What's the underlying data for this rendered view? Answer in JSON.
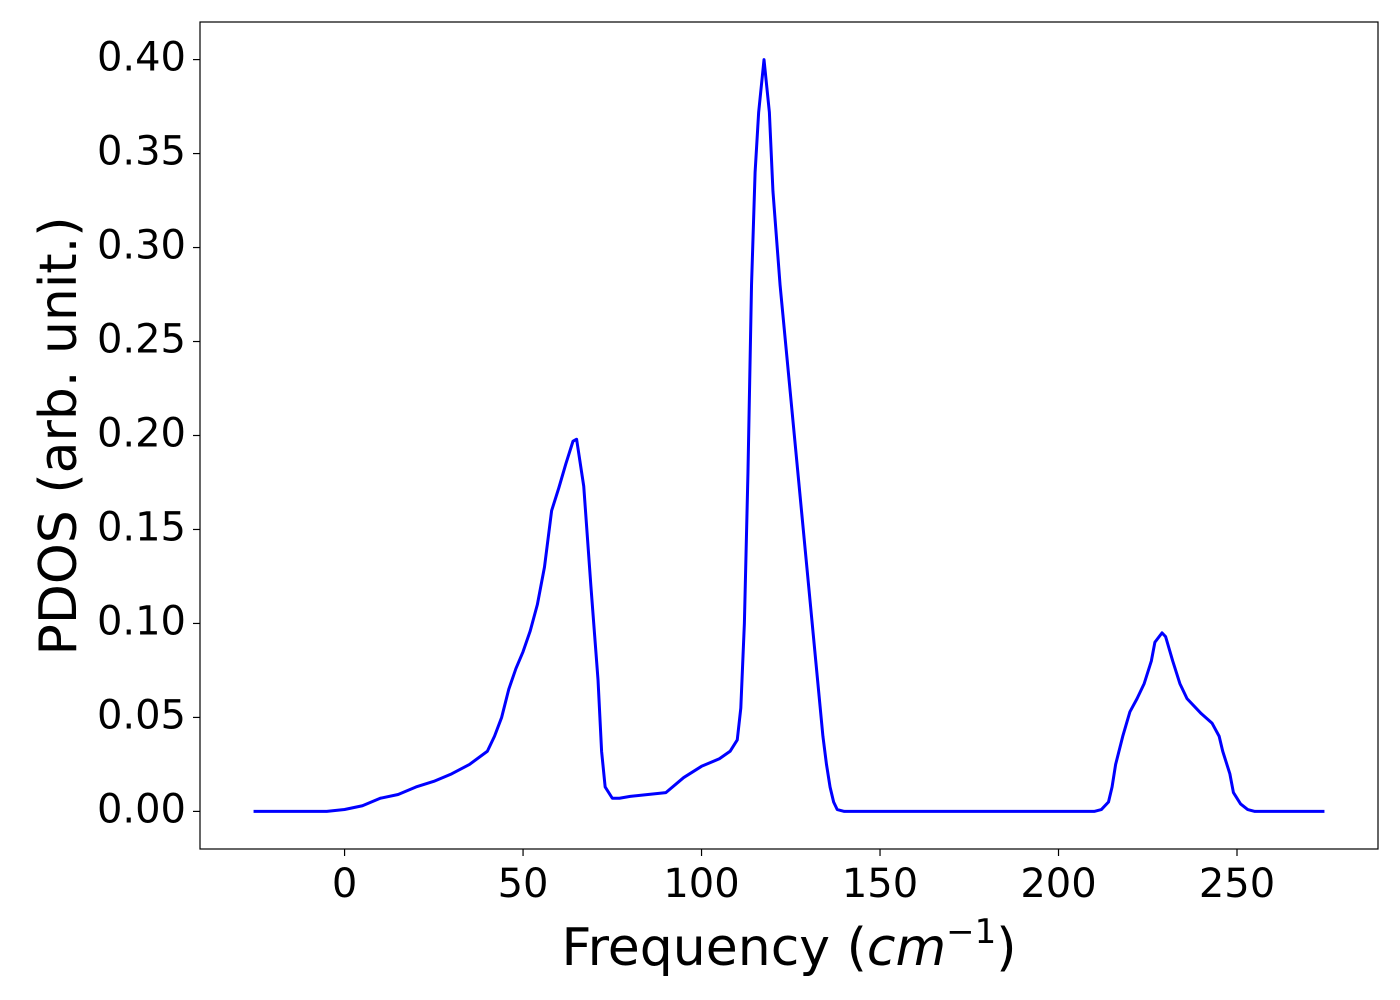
{
  "chart_data": {
    "type": "line",
    "x_label": {
      "text": "Frequency (",
      "unit": "cm",
      "exponent": "−1",
      "close": ")"
    },
    "y_label": "PDOS (arb. unit.)",
    "xlim": [
      -40.5,
      289.5
    ],
    "ylim": [
      -0.02,
      0.42
    ],
    "xticks": [
      0,
      50,
      100,
      150,
      200,
      250
    ],
    "yticks": [
      {
        "value": 0,
        "label": "0.00"
      },
      {
        "value": 0.05,
        "label": "0.05"
      },
      {
        "value": 0.1,
        "label": "0.10"
      },
      {
        "value": 0.15,
        "label": "0.15"
      },
      {
        "value": 0.2,
        "label": "0.20"
      },
      {
        "value": 0.25,
        "label": "0.25"
      },
      {
        "value": 0.3,
        "label": "0.30"
      },
      {
        "value": 0.35,
        "label": "0.35"
      },
      {
        "value": 0.4,
        "label": "0.40"
      }
    ],
    "grid": false,
    "series": [
      {
        "color": "#0000ff",
        "x": [
          -25.5,
          -5,
          0,
          5,
          10,
          15,
          20,
          25,
          30,
          35,
          40,
          42,
          44,
          46,
          48,
          50,
          52,
          54,
          56,
          58,
          60,
          62,
          64,
          65,
          67,
          69,
          71,
          72,
          73,
          75,
          77,
          80,
          85,
          90,
          95,
          100,
          105,
          108,
          110,
          111,
          112,
          113,
          114,
          115,
          116,
          117.5,
          119,
          120,
          122,
          124,
          126,
          128,
          130,
          132,
          134,
          135,
          136,
          137,
          138,
          140,
          150,
          200,
          210,
          212,
          214,
          215,
          216,
          218,
          220,
          222,
          224,
          226,
          227,
          229,
          230,
          232,
          234,
          236,
          240,
          243,
          245,
          246,
          248,
          249,
          251,
          253,
          255,
          274.5
        ],
        "values": [
          0,
          0,
          0.001,
          0.003,
          0.007,
          0.009,
          0.013,
          0.016,
          0.02,
          0.025,
          0.032,
          0.04,
          0.05,
          0.065,
          0.076,
          0.085,
          0.096,
          0.11,
          0.13,
          0.16,
          0.172,
          0.185,
          0.197,
          0.198,
          0.173,
          0.12,
          0.07,
          0.032,
          0.013,
          0.007,
          0.007,
          0.008,
          0.009,
          0.01,
          0.018,
          0.024,
          0.028,
          0.032,
          0.038,
          0.055,
          0.1,
          0.18,
          0.28,
          0.34,
          0.372,
          0.4,
          0.372,
          0.33,
          0.28,
          0.24,
          0.2,
          0.16,
          0.12,
          0.08,
          0.04,
          0.025,
          0.013,
          0.005,
          0.001,
          0,
          0,
          0,
          0,
          0.001,
          0.005,
          0.013,
          0.025,
          0.04,
          0.053,
          0.06,
          0.068,
          0.08,
          0.09,
          0.095,
          0.093,
          0.08,
          0.068,
          0.06,
          0.052,
          0.047,
          0.04,
          0.032,
          0.02,
          0.01,
          0.004,
          0.001,
          0,
          0
        ]
      }
    ]
  }
}
